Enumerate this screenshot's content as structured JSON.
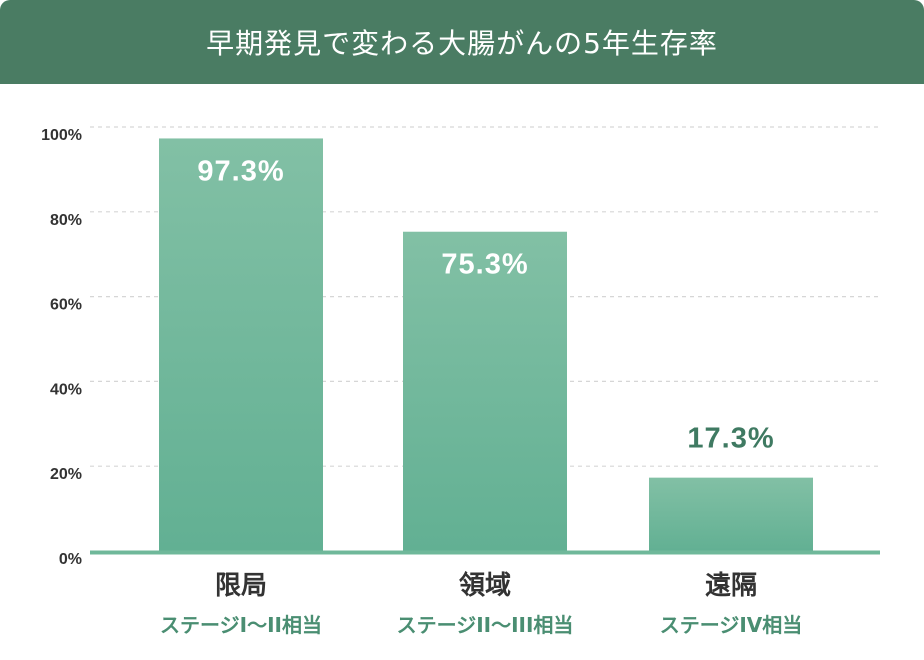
{
  "chart_data": {
    "type": "bar",
    "title": "早期発見で変わる大腸がんの5年生存率",
    "categories": [
      "限局",
      "領域",
      "遠隔"
    ],
    "subcategories": [
      "ステージI〜II相当",
      "ステージII〜III相当",
      "ステージIV相当"
    ],
    "values": [
      97.3,
      75.3,
      17.3
    ],
    "value_labels": [
      "97.3%",
      "75.3%",
      "17.3%"
    ],
    "yticks": [
      "0%",
      "20%",
      "40%",
      "60%",
      "80%",
      "100%"
    ],
    "ylim": [
      0,
      100
    ],
    "grid": true,
    "xlabel": "",
    "ylabel": ""
  },
  "colors": {
    "header": "#4a7c63",
    "bar_top": "#82c0a5",
    "bar_bottom": "#62b093",
    "axis": "#6fb89a",
    "label_outside": "#3f7a62"
  }
}
